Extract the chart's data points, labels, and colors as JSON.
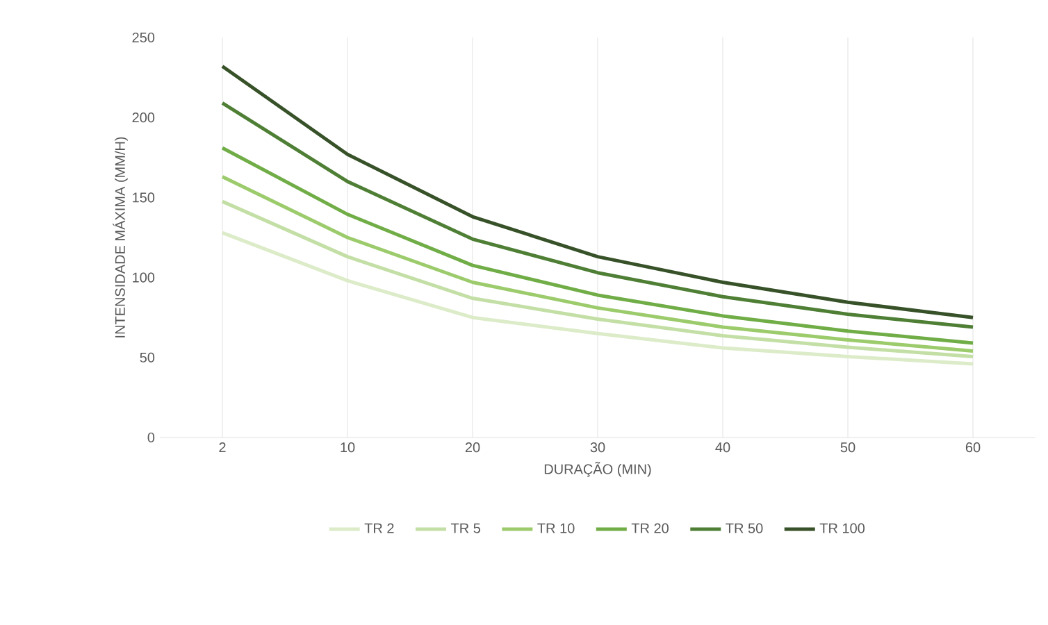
{
  "chart_data": {
    "type": "line",
    "xlabel": "DURAÇÃO (MIN)",
    "ylabel": "INTENSIDADE MÁXIMA (MM/H)",
    "categories": [
      "2",
      "10",
      "20",
      "30",
      "40",
      "50",
      "60"
    ],
    "ylim": [
      0,
      250
    ],
    "yticks": [
      0,
      50,
      100,
      150,
      200,
      250
    ],
    "grid": "x",
    "legend": "bottom",
    "marker": "none",
    "line_style": "solid",
    "series": [
      {
        "name": "TR 2",
        "color": "#dcebc8",
        "values": [
          128,
          98,
          75,
          65,
          56,
          50.6,
          46
        ]
      },
      {
        "name": "TR 5",
        "color": "#c3dfa6",
        "values": [
          147.5,
          113,
          87,
          74,
          63.6,
          56.4,
          50.6
        ]
      },
      {
        "name": "TR 10",
        "color": "#9ccb6c",
        "values": [
          163,
          125,
          97,
          81,
          69,
          61,
          54
        ]
      },
      {
        "name": "TR 20",
        "color": "#70ad47",
        "values": [
          181,
          139.5,
          107.6,
          89,
          76,
          66.5,
          59
        ]
      },
      {
        "name": "TR 50",
        "color": "#4e7f35",
        "values": [
          209,
          160,
          124,
          103,
          88,
          77,
          69
        ]
      },
      {
        "name": "TR 100",
        "color": "#375128",
        "values": [
          232,
          177,
          138,
          113,
          97,
          84.5,
          75
        ]
      }
    ]
  }
}
